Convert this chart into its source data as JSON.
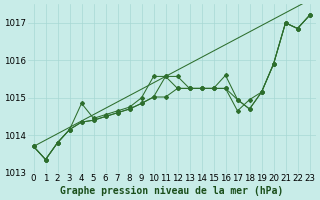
{
  "xlabel": "Graphe pression niveau de la mer (hPa)",
  "x": [
    0,
    1,
    2,
    3,
    4,
    5,
    6,
    7,
    8,
    9,
    10,
    11,
    12,
    13,
    14,
    15,
    16,
    17,
    18,
    19,
    20,
    21,
    22,
    23
  ],
  "line1": [
    1013.7,
    1013.35,
    1013.8,
    1014.15,
    1014.85,
    1014.45,
    1014.55,
    1014.65,
    1014.75,
    1015.0,
    1015.57,
    1015.57,
    1015.25,
    1015.25,
    1015.25,
    1015.25,
    1015.6,
    1014.95,
    1014.7,
    1015.15,
    1015.9,
    1017.0,
    1016.85,
    1017.2
  ],
  "line2": [
    1013.7,
    1013.35,
    1013.8,
    1014.15,
    1014.35,
    1014.4,
    1014.5,
    1014.6,
    1014.7,
    1014.85,
    1015.02,
    1015.02,
    1015.25,
    1015.25,
    1015.25,
    1015.25,
    1015.25,
    1014.95,
    1014.7,
    1015.15,
    1015.9,
    1017.0,
    1016.85,
    1017.2
  ],
  "line3": [
    1013.7,
    1013.35,
    1013.8,
    1014.15,
    1014.35,
    1014.4,
    1014.5,
    1014.6,
    1014.7,
    1014.85,
    1015.02,
    1015.57,
    1015.57,
    1015.25,
    1015.25,
    1015.25,
    1015.25,
    1014.65,
    1014.95,
    1015.15,
    1015.9,
    1017.0,
    1016.85,
    1017.2
  ],
  "trend": [
    1013.7,
    1013.87,
    1014.04,
    1014.21,
    1014.38,
    1014.55,
    1014.72,
    1014.89,
    1015.06,
    1015.23,
    1015.4,
    1015.57,
    1015.74,
    1015.91,
    1016.08,
    1016.25,
    1016.42,
    1016.59,
    1016.76,
    1016.93,
    1017.1,
    1017.27,
    1017.44,
    1017.61
  ],
  "line_color": "#2d6e2d",
  "bg_color": "#c8ece8",
  "grid_color": "#a8d8d4",
  "ylim": [
    1013.0,
    1017.5
  ],
  "yticks": [
    1013,
    1014,
    1015,
    1016,
    1017
  ],
  "xlabel_color": "#1a4e1a",
  "xlabel_fontsize": 7.0,
  "tick_fontsize": 6.2
}
